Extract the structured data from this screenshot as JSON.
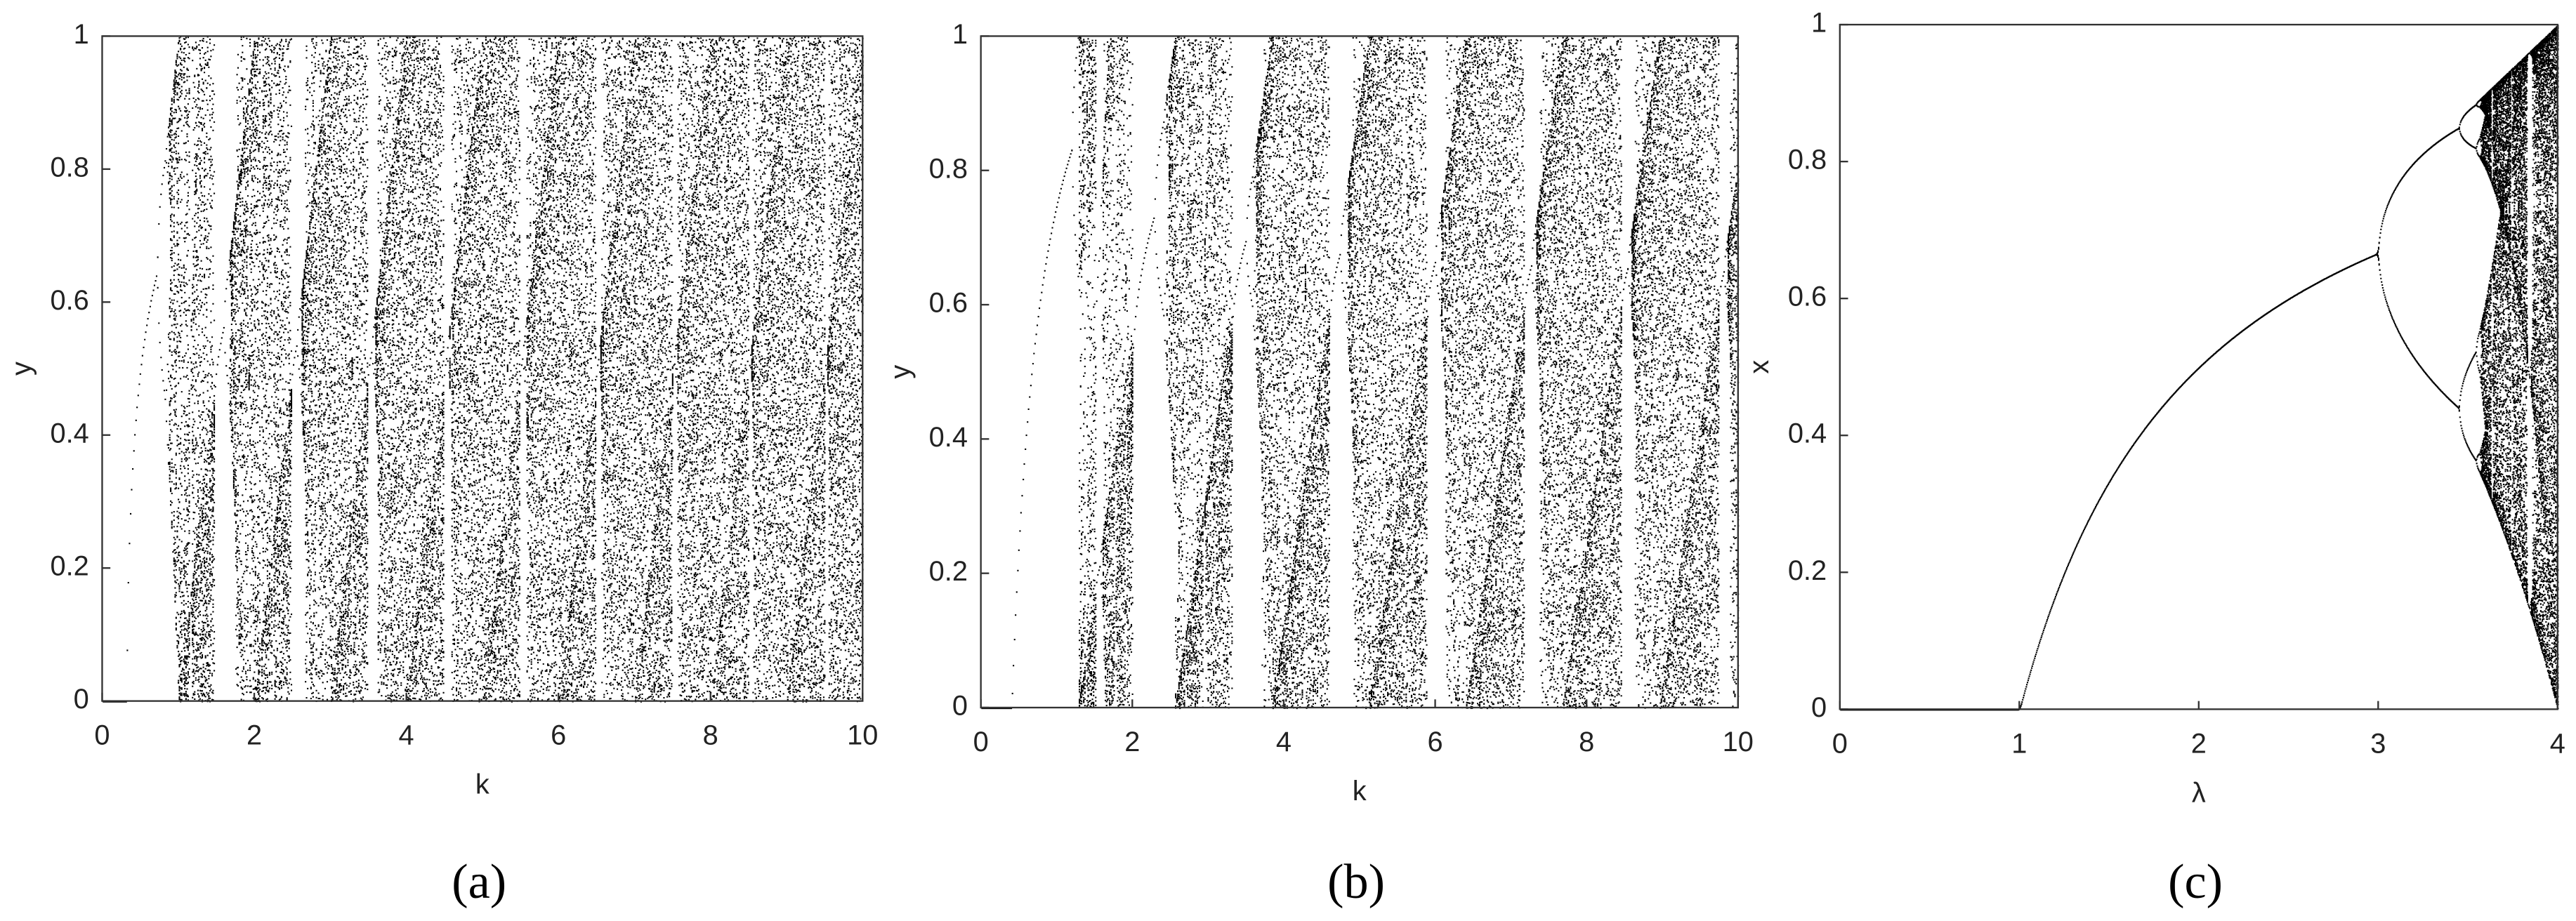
{
  "chart_data": [
    {
      "type": "bifurcation",
      "xlabel": "k",
      "ylabel": "y",
      "panel_label": "(a)",
      "xlim": [
        0,
        10
      ],
      "ylim": [
        0,
        1
      ],
      "xticks": [
        0,
        2,
        4,
        6,
        8,
        10
      ],
      "yticks": [
        0,
        0.2,
        0.4,
        0.6,
        0.8,
        1
      ]
    },
    {
      "type": "bifurcation",
      "xlabel": "k",
      "ylabel": "y",
      "panel_label": "(b)",
      "xlim": [
        0,
        10
      ],
      "ylim": [
        0,
        1
      ],
      "xticks": [
        0,
        2,
        4,
        6,
        8,
        10
      ],
      "yticks": [
        0,
        0.2,
        0.4,
        0.6,
        0.8,
        1
      ]
    },
    {
      "type": "bifurcation",
      "xlabel": "λ",
      "ylabel": "x",
      "panel_label": "(c)",
      "xlim": [
        0,
        4
      ],
      "ylim": [
        0,
        1
      ],
      "xticks": [
        0,
        1,
        2,
        3,
        4
      ],
      "yticks": [
        0,
        0.2,
        0.4,
        0.6,
        0.8,
        1
      ]
    }
  ]
}
